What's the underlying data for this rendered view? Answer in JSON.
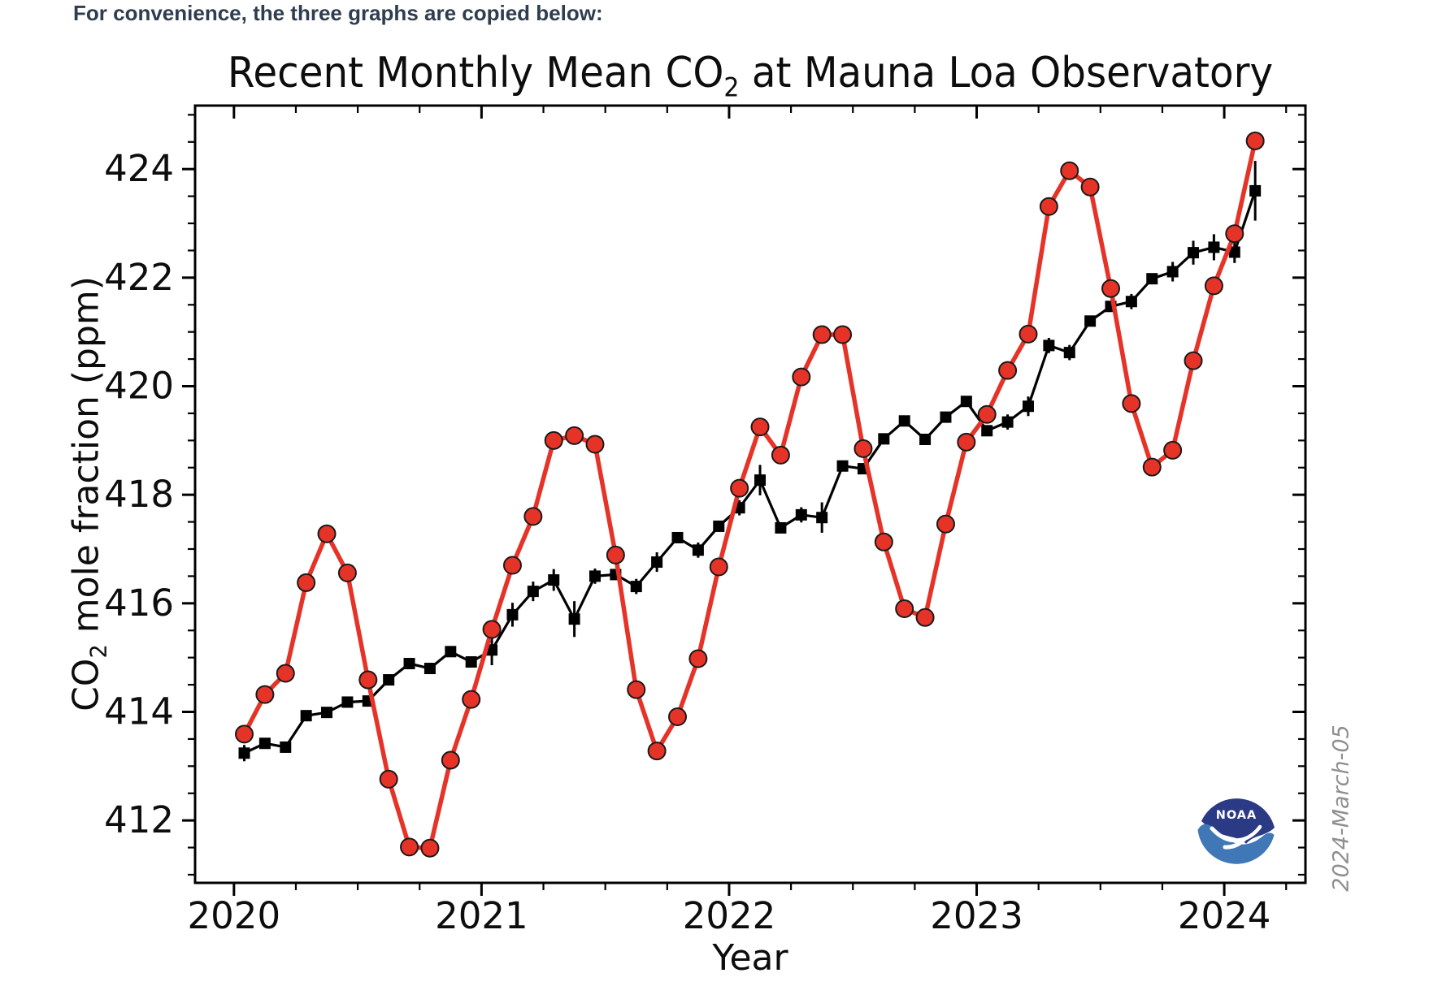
{
  "page": {
    "intro_text": "For convenience, the three graphs are copied below:"
  },
  "chart_data": {
    "type": "line",
    "title": "Recent Monthly Mean CO2 at Mauna Loa Observatory",
    "title_parts": {
      "prefix": "Recent Monthly Mean CO",
      "sub": "2",
      "suffix": " at Mauna Loa Observatory"
    },
    "xlabel": "Year",
    "ylabel": "CO2 mole fraction (ppm)",
    "ylabel_parts": {
      "prefix": "CO",
      "sub": "2",
      "suffix": " mole fraction (ppm)"
    },
    "xlim": [
      2019.843,
      2024.328
    ],
    "ylim": [
      410.85,
      425.17
    ],
    "x_ticks": [
      2020,
      2021,
      2022,
      2023,
      2024
    ],
    "x_minor_step": 0.25,
    "y_ticks": [
      412,
      414,
      416,
      418,
      420,
      422,
      424
    ],
    "y_minor_step": 0.5,
    "grid": false,
    "legend": "none",
    "start": {
      "year": 2020,
      "month": 1
    },
    "series": [
      {
        "name": "monthly_mean",
        "color": "#e63328",
        "marker": "circle",
        "values": [
          413.59,
          414.32,
          414.71,
          416.38,
          417.28,
          416.56,
          414.59,
          412.76,
          411.51,
          411.49,
          413.11,
          414.23,
          415.52,
          416.7,
          417.6,
          419.0,
          419.09,
          418.93,
          416.89,
          414.41,
          413.28,
          413.91,
          414.98,
          416.67,
          418.12,
          419.25,
          418.73,
          420.17,
          420.95,
          420.95,
          418.85,
          417.13,
          415.9,
          415.74,
          417.46,
          418.97,
          419.48,
          420.29,
          420.96,
          423.31,
          423.97,
          423.67,
          421.8,
          419.68,
          418.51,
          418.82,
          420.47,
          421.85,
          422.81,
          424.52
        ]
      },
      {
        "name": "deseasonalized_trend",
        "color": "#000000",
        "marker": "square",
        "values": [
          413.24,
          413.42,
          413.35,
          413.93,
          413.99,
          414.18,
          414.2,
          414.59,
          414.89,
          414.8,
          415.11,
          414.92,
          415.14,
          415.79,
          416.22,
          416.43,
          415.71,
          416.5,
          416.53,
          416.31,
          416.76,
          417.21,
          416.98,
          417.42,
          417.76,
          418.27,
          417.39,
          417.63,
          417.58,
          418.53,
          418.48,
          419.03,
          419.36,
          419.02,
          419.43,
          419.72,
          419.18,
          419.34,
          419.63,
          420.75,
          420.62,
          421.2,
          421.47,
          421.56,
          421.98,
          422.11,
          422.46,
          422.56,
          422.47,
          423.6
        ],
        "errors": [
          0.15,
          0.09,
          0.1,
          0.1,
          0.09,
          0.08,
          0.08,
          0.09,
          0.08,
          0.08,
          0.1,
          0.09,
          0.28,
          0.22,
          0.18,
          0.2,
          0.33,
          0.14,
          0.1,
          0.14,
          0.18,
          0.1,
          0.14,
          0.1,
          0.14,
          0.28,
          0.1,
          0.14,
          0.28,
          0.1,
          0.1,
          0.1,
          0.09,
          0.1,
          0.1,
          0.1,
          0.1,
          0.14,
          0.18,
          0.14,
          0.14,
          0.1,
          0.1,
          0.14,
          0.1,
          0.18,
          0.22,
          0.24,
          0.2,
          0.55
        ]
      }
    ],
    "watermark": "2024-March-05",
    "logo": "NOAA"
  }
}
